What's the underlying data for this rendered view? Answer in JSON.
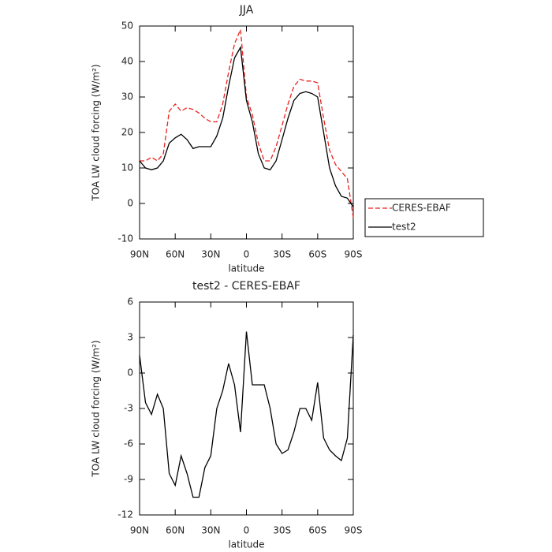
{
  "chart_data": [
    {
      "type": "line",
      "title": "JJA",
      "xlabel": "latitude",
      "ylabel": "TOA LW cloud forcing (W/m²)",
      "x": [
        90,
        85,
        80,
        75,
        70,
        65,
        60,
        55,
        50,
        45,
        40,
        35,
        30,
        25,
        20,
        15,
        10,
        5,
        0,
        -5,
        -10,
        -15,
        -20,
        -25,
        -30,
        -35,
        -40,
        -45,
        -50,
        -55,
        -60,
        -65,
        -70,
        -75,
        -80,
        -85,
        -90
      ],
      "xlim": [
        90,
        -90
      ],
      "xticks": [
        {
          "value": 90,
          "label": "90N"
        },
        {
          "value": 60,
          "label": "60N"
        },
        {
          "value": 30,
          "label": "30N"
        },
        0,
        {
          "value": -30,
          "label": "30S"
        },
        {
          "value": -60,
          "label": "60S"
        },
        {
          "value": -90,
          "label": "90S"
        }
      ],
      "ylim": [
        -10,
        50
      ],
      "yticks": [
        -10,
        0,
        10,
        20,
        30,
        40,
        50
      ],
      "legend": "right",
      "series": [
        {
          "name": "CERES-EBAF",
          "color": "#e8231f",
          "linestyle": "dashed",
          "values": [
            12,
            12,
            13,
            12,
            14,
            26,
            28,
            26,
            27,
            26.5,
            25.5,
            24,
            23,
            23,
            28,
            37,
            45,
            49,
            30,
            25,
            17,
            12,
            12,
            16,
            22,
            28,
            33,
            35,
            34.5,
            34.5,
            34,
            24,
            15,
            11,
            9,
            7,
            -4
          ]
        },
        {
          "name": "test2",
          "color": "#000000",
          "linestyle": "solid",
          "values": [
            12,
            10,
            9.5,
            10,
            12,
            17,
            18.5,
            19.5,
            18,
            15.5,
            16,
            16,
            16,
            19,
            24,
            33,
            41,
            44,
            29,
            23,
            14,
            10,
            9.5,
            12,
            18,
            24,
            29,
            31,
            31.5,
            31,
            30,
            20,
            10,
            5,
            2,
            1.5,
            -1
          ]
        }
      ]
    },
    {
      "type": "line",
      "title": "test2 - CERES-EBAF",
      "xlabel": "latitude",
      "ylabel": "TOA LW cloud forcing (W/m²)",
      "x": [
        90,
        85,
        80,
        75,
        70,
        65,
        60,
        55,
        50,
        45,
        40,
        35,
        30,
        25,
        20,
        15,
        10,
        5,
        0,
        -5,
        -10,
        -15,
        -20,
        -25,
        -30,
        -35,
        -40,
        -45,
        -50,
        -55,
        -60,
        -65,
        -70,
        -75,
        -80,
        -85,
        -90
      ],
      "xlim": [
        90,
        -90
      ],
      "xticks": [
        {
          "value": 90,
          "label": "90N"
        },
        {
          "value": 60,
          "label": "60N"
        },
        {
          "value": 30,
          "label": "30N"
        },
        0,
        {
          "value": -30,
          "label": "30S"
        },
        {
          "value": -60,
          "label": "60S"
        },
        {
          "value": -90,
          "label": "90S"
        }
      ],
      "ylim": [
        -12,
        6
      ],
      "yticks": [
        -12,
        -9,
        -6,
        -3,
        0,
        3,
        6
      ],
      "series": [
        {
          "color": "#000000",
          "linestyle": "solid",
          "values": [
            1.5,
            -2.5,
            -3.5,
            -1.8,
            -3,
            -8.5,
            -9.5,
            -7,
            -8.5,
            -10.5,
            -10.5,
            -8,
            -7,
            -3,
            -1.5,
            0.8,
            -1,
            -5,
            3.5,
            -1,
            -1,
            -1,
            -3,
            -6,
            -6.8,
            -6.5,
            -5,
            -3,
            -3,
            -4,
            -0.8,
            -5.5,
            -6.5,
            -7,
            -7.4,
            -5.5,
            3.2
          ]
        }
      ]
    }
  ]
}
